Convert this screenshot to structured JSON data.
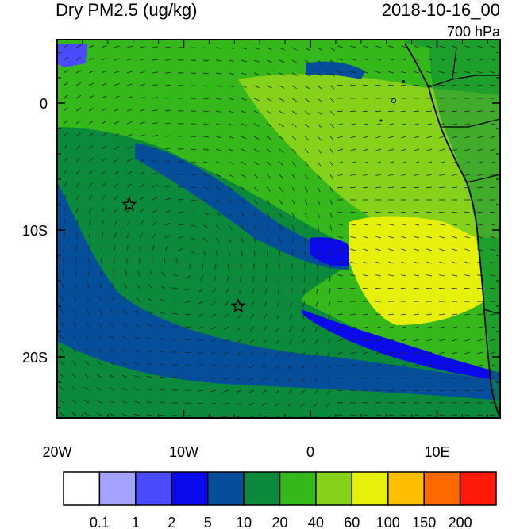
{
  "header": {
    "title": "Dry PM2.5 (ug/kg)",
    "datetime": "2018-10-16_00",
    "level": "700 hPa"
  },
  "map": {
    "region": "Southeast Atlantic / West Africa",
    "lon_range": [
      -20,
      15
    ],
    "lat_range": [
      -25,
      5
    ],
    "x_ticks": [
      {
        "value": -20,
        "label": "20W"
      },
      {
        "value": -10,
        "label": "10W"
      },
      {
        "value": 0,
        "label": "0"
      },
      {
        "value": 10,
        "label": "10E"
      }
    ],
    "y_ticks": [
      {
        "value": 0,
        "label": "0"
      },
      {
        "value": -10,
        "label": "10S"
      },
      {
        "value": -20,
        "label": "20S"
      }
    ],
    "markers": [
      {
        "name": "star-marker-1",
        "lon": -14.3,
        "lat": -8.0,
        "symbol": "star"
      },
      {
        "name": "star-marker-2",
        "lon": -5.7,
        "lat": -16.0,
        "symbol": "star"
      }
    ]
  },
  "colorbar": {
    "colors": [
      "#ffffff",
      "#a3a3ff",
      "#4a4aff",
      "#0a0aea",
      "#054f9a",
      "#0a8a3a",
      "#34b81a",
      "#86d21a",
      "#e6f00a",
      "#ffbe00",
      "#ff6a00",
      "#ff1a0a"
    ],
    "labels": [
      "0.1",
      "1",
      "2",
      "5",
      "10",
      "20",
      "40",
      "60",
      "100",
      "150",
      "200"
    ]
  }
}
